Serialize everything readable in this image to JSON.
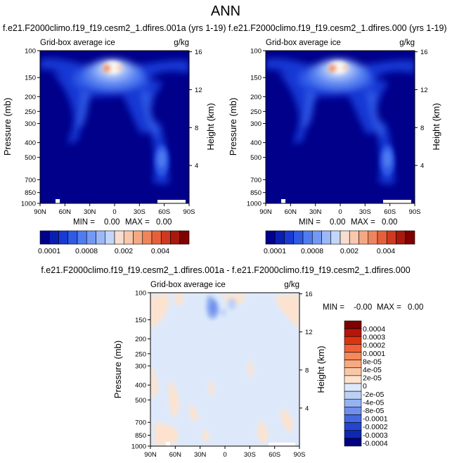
{
  "page_title": "ANN",
  "chart_data": [
    {
      "type": "heatmap",
      "title": "f.e21.F2000climo.f19_f19.cesm2_1.dfires.001a (yrs 1-19)",
      "subtitle_left": "Grid-box average ice",
      "subtitle_right": "g/kg",
      "ylabel": "Pressure (mb)",
      "ylabel_right": "Height (km)",
      "xticks": [
        "90N",
        "60N",
        "30N",
        "0",
        "30S",
        "60S",
        "90S"
      ],
      "yticks": [
        "100",
        "150",
        "200",
        "250",
        "300",
        "400",
        "500",
        "700",
        "850",
        "1000"
      ],
      "yticks_right": [
        "16",
        "12",
        "8",
        "4"
      ],
      "stats": {
        "min_label": "MIN =",
        "min": "0.00",
        "max_label": "MAX =",
        "max": "0.00"
      },
      "colorbar_labels": [
        "0.0001",
        "0.0008",
        "0.002",
        "0.004"
      ],
      "fields": "zonal-mean ice mixing ratio, maximum near 200 mb just north of the equator"
    },
    {
      "type": "heatmap",
      "title": "f.e21.F2000climo.f19_f19.cesm2_1.dfires.000 (yrs 1-19)",
      "subtitle_left": "Grid-box average ice",
      "subtitle_right": "g/kg",
      "ylabel": "Pressure (mb)",
      "ylabel_right": "Height (km)",
      "xticks": [
        "90N",
        "60N",
        "30N",
        "0",
        "30S",
        "60S",
        "90S"
      ],
      "yticks": [
        "100",
        "150",
        "200",
        "250",
        "300",
        "400",
        "500",
        "700",
        "850",
        "1000"
      ],
      "yticks_right": [
        "16",
        "12",
        "8",
        "4"
      ],
      "stats": {
        "min_label": "MIN =",
        "min": "0.00",
        "max_label": "MAX =",
        "max": "0.00"
      },
      "colorbar_labels": [
        "0.0001",
        "0.0008",
        "0.002",
        "0.004"
      ]
    },
    {
      "type": "heatmap",
      "title": "f.e21.F2000climo.f19_f19.cesm2_1.dfires.001a - f.e21.F2000climo.f19_f19.cesm2_1.dfires.000",
      "subtitle_left": "Grid-box average ice",
      "subtitle_right": "g/kg",
      "ylabel": "Pressure (mb)",
      "ylabel_right": "Height (km)",
      "xticks": [
        "90N",
        "60N",
        "30N",
        "0",
        "30S",
        "60S",
        "90S"
      ],
      "yticks": [
        "100",
        "150",
        "200",
        "250",
        "300",
        "400",
        "500",
        "700",
        "850",
        "1000"
      ],
      "yticks_right": [
        "16",
        "12",
        "8",
        "4"
      ],
      "stats": {
        "min_label": "MIN =",
        "min": "-0.00",
        "max_label": "MAX =",
        "max": "0.00"
      },
      "colorbar_labels": [
        "0.0004",
        "0.0003",
        "0.0002",
        "0.0001",
        "8e-05",
        "4e-05",
        "2e-05",
        "0",
        "-2e-05",
        "-4e-05",
        "-8e-05",
        "-0.0001",
        "-0.0002",
        "-0.0003",
        "-0.0004"
      ]
    }
  ],
  "colors": {
    "seq": [
      "#00008b",
      "#0a1fb0",
      "#1839d4",
      "#2e5ae6",
      "#4f7cf0",
      "#7399f4",
      "#9bb8f7",
      "#c3d6fa",
      "#f7ded0",
      "#f8c8ad",
      "#f5a882",
      "#ef855c",
      "#e5603a",
      "#cf3a1f",
      "#a9180c",
      "#7f0000"
    ],
    "diff": [
      "#7f0000",
      "#b3160b",
      "#dc3311",
      "#f06138",
      "#f78859",
      "#f9a97f",
      "#fac8a6",
      "#fde3cf",
      "#dde9fb",
      "#bcd0f7",
      "#96b2f2",
      "#6f8fec",
      "#4568e2",
      "#2446cf",
      "#0e28b0",
      "#000080"
    ]
  }
}
